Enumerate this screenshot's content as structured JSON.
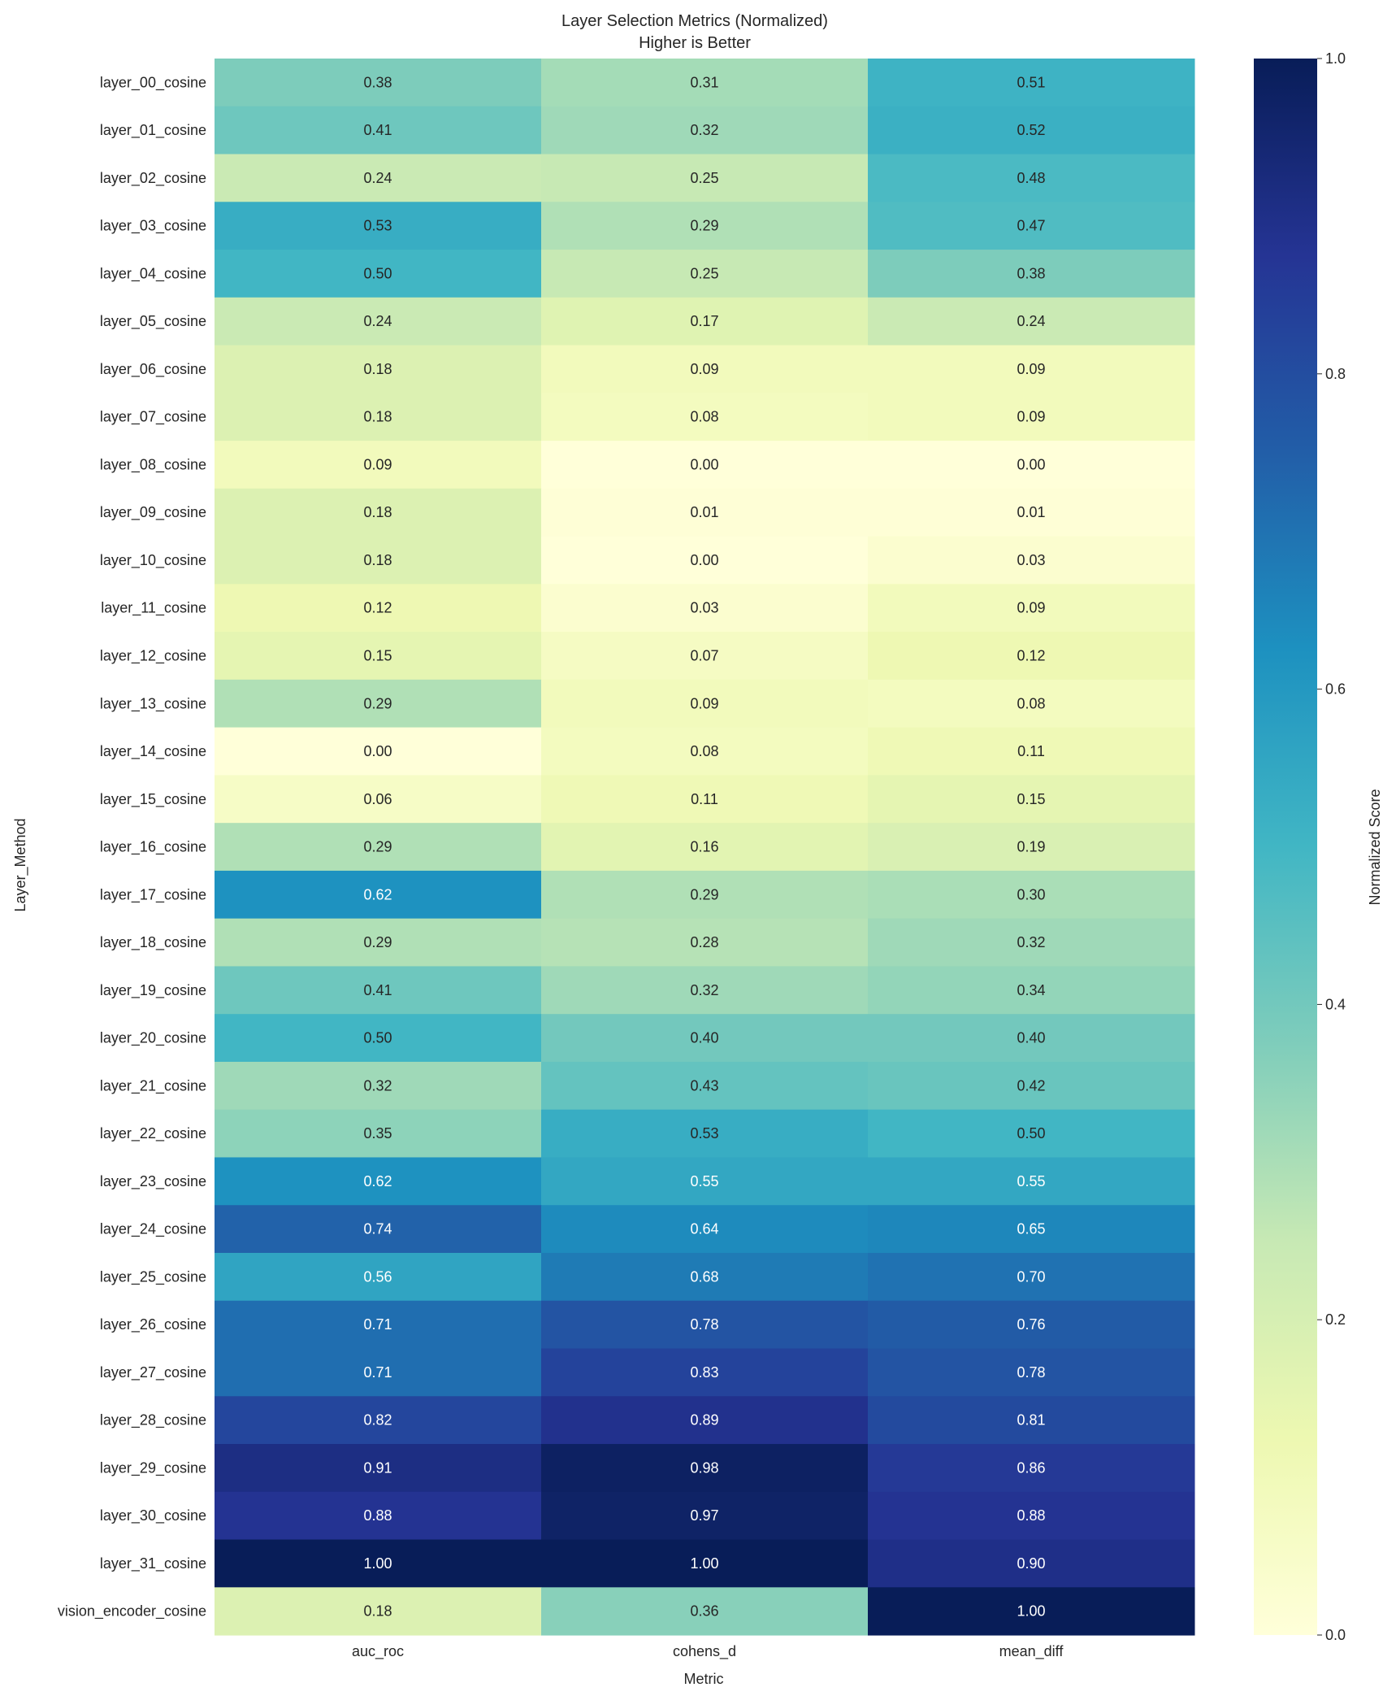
{
  "chart_data": {
    "type": "heatmap",
    "title": "Layer Selection Metrics (Normalized)",
    "subtitle": "Higher is Better",
    "xlabel": "Metric",
    "ylabel": "Layer_Method",
    "columns": [
      "auc_roc",
      "cohens_d",
      "mean_diff"
    ],
    "rows": [
      "layer_00_cosine",
      "layer_01_cosine",
      "layer_02_cosine",
      "layer_03_cosine",
      "layer_04_cosine",
      "layer_05_cosine",
      "layer_06_cosine",
      "layer_07_cosine",
      "layer_08_cosine",
      "layer_09_cosine",
      "layer_10_cosine",
      "layer_11_cosine",
      "layer_12_cosine",
      "layer_13_cosine",
      "layer_14_cosine",
      "layer_15_cosine",
      "layer_16_cosine",
      "layer_17_cosine",
      "layer_18_cosine",
      "layer_19_cosine",
      "layer_20_cosine",
      "layer_21_cosine",
      "layer_22_cosine",
      "layer_23_cosine",
      "layer_24_cosine",
      "layer_25_cosine",
      "layer_26_cosine",
      "layer_27_cosine",
      "layer_28_cosine",
      "layer_29_cosine",
      "layer_30_cosine",
      "layer_31_cosine",
      "vision_encoder_cosine"
    ],
    "values": [
      [
        0.38,
        0.31,
        0.51
      ],
      [
        0.41,
        0.32,
        0.52
      ],
      [
        0.24,
        0.25,
        0.48
      ],
      [
        0.53,
        0.29,
        0.47
      ],
      [
        0.5,
        0.25,
        0.38
      ],
      [
        0.24,
        0.17,
        0.24
      ],
      [
        0.18,
        0.09,
        0.09
      ],
      [
        0.18,
        0.08,
        0.09
      ],
      [
        0.09,
        0.0,
        0.0
      ],
      [
        0.18,
        0.01,
        0.01
      ],
      [
        0.18,
        0.0,
        0.03
      ],
      [
        0.12,
        0.03,
        0.09
      ],
      [
        0.15,
        0.07,
        0.12
      ],
      [
        0.29,
        0.09,
        0.08
      ],
      [
        0.0,
        0.08,
        0.11
      ],
      [
        0.06,
        0.11,
        0.15
      ],
      [
        0.29,
        0.16,
        0.19
      ],
      [
        0.62,
        0.29,
        0.3
      ],
      [
        0.29,
        0.28,
        0.32
      ],
      [
        0.41,
        0.32,
        0.34
      ],
      [
        0.5,
        0.4,
        0.4
      ],
      [
        0.32,
        0.43,
        0.42
      ],
      [
        0.35,
        0.53,
        0.5
      ],
      [
        0.62,
        0.55,
        0.55
      ],
      [
        0.74,
        0.64,
        0.65
      ],
      [
        0.56,
        0.68,
        0.7
      ],
      [
        0.71,
        0.78,
        0.76
      ],
      [
        0.71,
        0.83,
        0.78
      ],
      [
        0.82,
        0.89,
        0.81
      ],
      [
        0.91,
        0.98,
        0.86
      ],
      [
        0.88,
        0.97,
        0.88
      ],
      [
        1.0,
        1.0,
        0.9
      ],
      [
        0.18,
        0.36,
        1.0
      ]
    ],
    "value_format": "0.00",
    "colormap": "YlGnBu",
    "colorbar": {
      "label": "Normalized Score",
      "range": [
        0.0,
        1.0
      ],
      "ticks": [
        "0.0",
        "0.2",
        "0.4",
        "0.6",
        "0.8",
        "1.0"
      ]
    },
    "grid": false,
    "legend": "colorbar-right"
  }
}
